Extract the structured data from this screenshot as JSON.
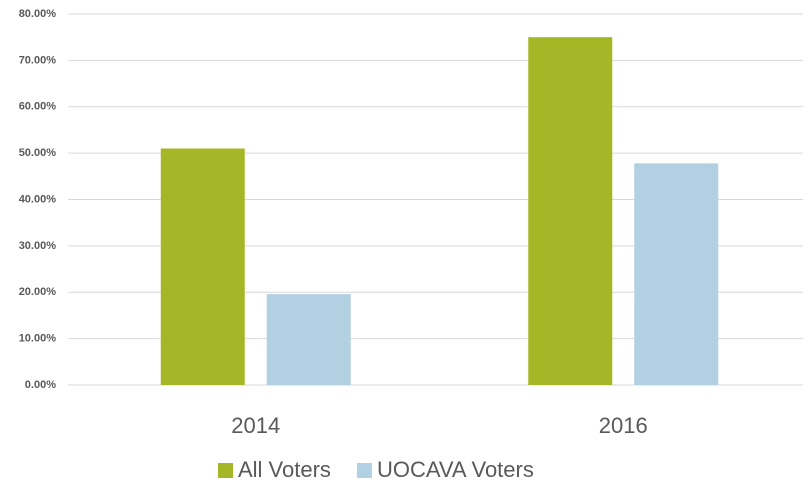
{
  "chart_data": {
    "type": "bar",
    "categories": [
      "2014",
      "2016"
    ],
    "series": [
      {
        "name": "All Voters",
        "color": "#a5b727",
        "values": [
          51,
          75
        ]
      },
      {
        "name": "UOCAVA Voters",
        "color": "#b1d0e1",
        "values": [
          19.6,
          47.8
        ]
      }
    ],
    "ylim": [
      0,
      80
    ],
    "yticks": [
      {
        "value": 0,
        "label": "0.00%"
      },
      {
        "value": 10,
        "label": "10.00%"
      },
      {
        "value": 20,
        "label": "20.00%"
      },
      {
        "value": 30,
        "label": "30.00%"
      },
      {
        "value": 40,
        "label": "40.00%"
      },
      {
        "value": 50,
        "label": "50.00%"
      },
      {
        "value": 60,
        "label": "60.00%"
      },
      {
        "value": 70,
        "label": "70.00%"
      },
      {
        "value": 80,
        "label": "80.00%"
      }
    ],
    "grid": true,
    "legend": "bottom"
  }
}
